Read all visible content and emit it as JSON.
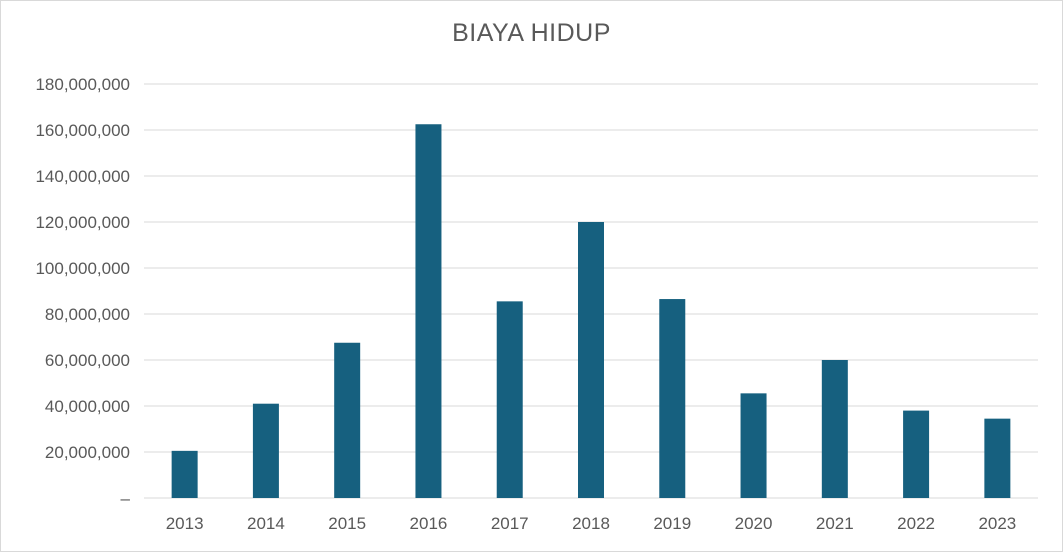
{
  "chart_data": {
    "type": "bar",
    "title": "BIAYA HIDUP",
    "xlabel": "",
    "ylabel": "",
    "categories": [
      "2013",
      "2014",
      "2015",
      "2016",
      "2017",
      "2018",
      "2019",
      "2020",
      "2021",
      "2022",
      "2023"
    ],
    "values": [
      20500000,
      41000000,
      67500000,
      162500000,
      85500000,
      120000000,
      86500000,
      45500000,
      60000000,
      38000000,
      34500000
    ],
    "ylim": [
      0,
      180000000
    ],
    "yticks": [
      0,
      20000000,
      40000000,
      60000000,
      80000000,
      100000000,
      120000000,
      140000000,
      160000000,
      180000000
    ],
    "ytick_labels": [
      "–",
      "20,000,000",
      "40,000,000",
      "60,000,000",
      "80,000,000",
      "100,000,000",
      "120,000,000",
      "140,000,000",
      "160,000,000",
      "180,000,000"
    ],
    "bar_color": "#16607f",
    "grid": true,
    "legend": "none"
  }
}
